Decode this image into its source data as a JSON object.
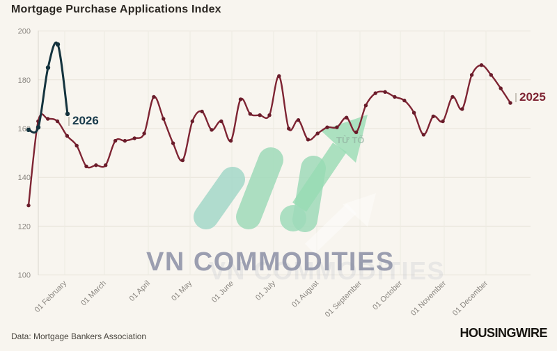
{
  "header": {
    "title": "Mortgage Purchase Applications Index"
  },
  "footer": {
    "source": "Data: Mortgage Bankers Association",
    "brand": "HOUSINGWIRE"
  },
  "watermark": {
    "text": "VN COMMODITIES",
    "ghost_text": "TỪ TỐ",
    "logo_green": "#9fdbba",
    "logo_teal": "#a4d8c9",
    "text_color": "#878ca3"
  },
  "chart_data": {
    "type": "line",
    "title": "Mortgage Purchase Applications Index",
    "xlabel": "",
    "ylabel": "",
    "ylim": [
      100,
      200
    ],
    "y_ticks": [
      100,
      120,
      140,
      160,
      180,
      200
    ],
    "x_tick_labels": [
      "01 February",
      "01 March",
      "01 April",
      "01 May",
      "01 June",
      "01 July",
      "01 August",
      "01 September",
      "01 October",
      "01 November",
      "01 December"
    ],
    "grid": true,
    "legend_position": "end-of-line-labels",
    "x_unit": "week",
    "series": [
      {
        "name": "2025",
        "color": "#7e2433",
        "marker_color": "#691c2a",
        "values": [
          128.5,
          163,
          164,
          163,
          157,
          153,
          144.5,
          145,
          145,
          155,
          155,
          156,
          158,
          173,
          164,
          154,
          147,
          163,
          167,
          159.5,
          163,
          155,
          172,
          166,
          165.5,
          165.5,
          181.5,
          160,
          163.5,
          155.5,
          158,
          160.5,
          160.5,
          164.5,
          158.5,
          169.5,
          174.5,
          175,
          173,
          171.5,
          166.5,
          157.5,
          165,
          163,
          173,
          168,
          182,
          186,
          182,
          176.5,
          170.5
        ]
      },
      {
        "name": "2026",
        "color": "#14333e",
        "marker_color": "#14333e",
        "values": [
          159.5,
          160.5,
          185,
          194.5,
          166
        ]
      }
    ]
  }
}
